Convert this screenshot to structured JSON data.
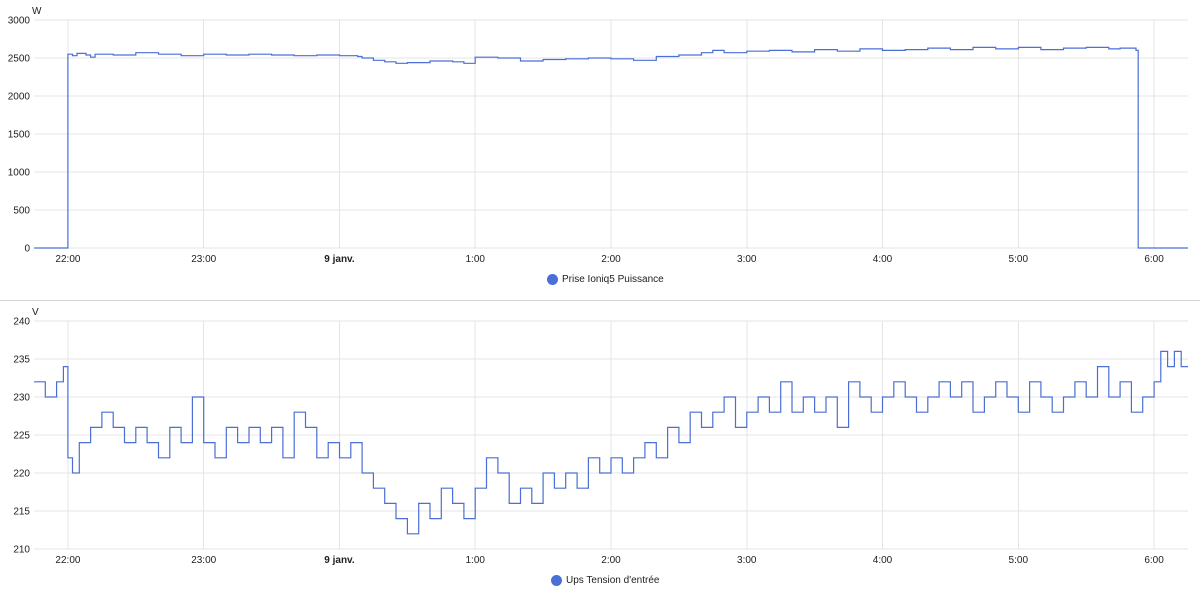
{
  "colors": {
    "series": "#4a6fd6",
    "grid": "#e4e4e4",
    "separator": "#d6d6d6"
  },
  "chart_data": [
    {
      "type": "line",
      "unit": "W",
      "ylim": [
        0,
        3000
      ],
      "yticks": [
        "3000",
        "2500",
        "2000",
        "1500",
        "1000",
        "500",
        "0"
      ],
      "xticks": [
        {
          "t": "22:00",
          "label": "22:00",
          "bold": false
        },
        {
          "t": "23:00",
          "label": "23:00",
          "bold": false
        },
        {
          "t": "00:00",
          "label": "9 janv.",
          "bold": true
        },
        {
          "t": "01:00",
          "label": "1:00",
          "bold": false
        },
        {
          "t": "02:00",
          "label": "2:00",
          "bold": false
        },
        {
          "t": "03:00",
          "label": "3:00",
          "bold": false
        },
        {
          "t": "04:00",
          "label": "4:00",
          "bold": false
        },
        {
          "t": "05:00",
          "label": "5:00",
          "bold": false
        },
        {
          "t": "06:00",
          "label": "6:00",
          "bold": false
        }
      ],
      "xlim": [
        "21:45",
        "06:15"
      ],
      "grid": true,
      "legend": "bottom-center",
      "series": [
        {
          "name": "Prise Ioniq5 Puissance",
          "points": [
            [
              "21:45",
              0
            ],
            [
              "21:59",
              0
            ],
            [
              "22:00",
              2550
            ],
            [
              "22:02",
              2530
            ],
            [
              "22:04",
              2560
            ],
            [
              "22:08",
              2540
            ],
            [
              "22:10",
              2510
            ],
            [
              "22:12",
              2550
            ],
            [
              "22:20",
              2540
            ],
            [
              "22:30",
              2570
            ],
            [
              "22:40",
              2550
            ],
            [
              "22:50",
              2530
            ],
            [
              "23:00",
              2550
            ],
            [
              "23:10",
              2540
            ],
            [
              "23:20",
              2550
            ],
            [
              "23:30",
              2540
            ],
            [
              "23:40",
              2530
            ],
            [
              "23:50",
              2540
            ],
            [
              "00:00",
              2530
            ],
            [
              "00:08",
              2520
            ],
            [
              "00:10",
              2500
            ],
            [
              "00:15",
              2470
            ],
            [
              "00:20",
              2450
            ],
            [
              "00:25",
              2430
            ],
            [
              "00:30",
              2440
            ],
            [
              "00:40",
              2460
            ],
            [
              "00:50",
              2450
            ],
            [
              "00:55",
              2430
            ],
            [
              "01:00",
              2510
            ],
            [
              "01:10",
              2500
            ],
            [
              "01:20",
              2460
            ],
            [
              "01:30",
              2480
            ],
            [
              "01:40",
              2490
            ],
            [
              "01:50",
              2500
            ],
            [
              "02:00",
              2490
            ],
            [
              "02:10",
              2470
            ],
            [
              "02:20",
              2520
            ],
            [
              "02:30",
              2540
            ],
            [
              "02:40",
              2570
            ],
            [
              "02:45",
              2600
            ],
            [
              "02:50",
              2570
            ],
            [
              "03:00",
              2590
            ],
            [
              "03:10",
              2600
            ],
            [
              "03:20",
              2580
            ],
            [
              "03:30",
              2610
            ],
            [
              "03:40",
              2590
            ],
            [
              "03:50",
              2620
            ],
            [
              "04:00",
              2600
            ],
            [
              "04:10",
              2610
            ],
            [
              "04:20",
              2630
            ],
            [
              "04:30",
              2610
            ],
            [
              "04:40",
              2640
            ],
            [
              "04:50",
              2620
            ],
            [
              "05:00",
              2640
            ],
            [
              "05:10",
              2610
            ],
            [
              "05:20",
              2630
            ],
            [
              "05:30",
              2640
            ],
            [
              "05:40",
              2620
            ],
            [
              "05:45",
              2630
            ],
            [
              "05:52",
              2600
            ],
            [
              "05:53",
              0
            ],
            [
              "06:15",
              0
            ]
          ]
        }
      ]
    },
    {
      "type": "line",
      "unit": "V",
      "ylim": [
        210,
        240
      ],
      "yticks": [
        "240",
        "235",
        "230",
        "225",
        "220",
        "215",
        "210"
      ],
      "xticks": [
        {
          "t": "22:00",
          "label": "22:00",
          "bold": false
        },
        {
          "t": "23:00",
          "label": "23:00",
          "bold": false
        },
        {
          "t": "00:00",
          "label": "9 janv.",
          "bold": true
        },
        {
          "t": "01:00",
          "label": "1:00",
          "bold": false
        },
        {
          "t": "02:00",
          "label": "2:00",
          "bold": false
        },
        {
          "t": "03:00",
          "label": "3:00",
          "bold": false
        },
        {
          "t": "04:00",
          "label": "4:00",
          "bold": false
        },
        {
          "t": "05:00",
          "label": "5:00",
          "bold": false
        },
        {
          "t": "06:00",
          "label": "6:00",
          "bold": false
        }
      ],
      "xlim": [
        "21:45",
        "06:15"
      ],
      "grid": true,
      "legend": "bottom-center",
      "series": [
        {
          "name": "Ups Tension d'entrée",
          "points": [
            [
              "21:45",
              232
            ],
            [
              "21:50",
              230
            ],
            [
              "21:55",
              232
            ],
            [
              "21:58",
              234
            ],
            [
              "22:00",
              222
            ],
            [
              "22:02",
              220
            ],
            [
              "22:05",
              224
            ],
            [
              "22:10",
              226
            ],
            [
              "22:15",
              228
            ],
            [
              "22:20",
              226
            ],
            [
              "22:25",
              224
            ],
            [
              "22:30",
              226
            ],
            [
              "22:35",
              224
            ],
            [
              "22:40",
              222
            ],
            [
              "22:45",
              226
            ],
            [
              "22:50",
              224
            ],
            [
              "22:55",
              230
            ],
            [
              "23:00",
              224
            ],
            [
              "23:05",
              222
            ],
            [
              "23:10",
              226
            ],
            [
              "23:15",
              224
            ],
            [
              "23:20",
              226
            ],
            [
              "23:25",
              224
            ],
            [
              "23:30",
              226
            ],
            [
              "23:35",
              222
            ],
            [
              "23:40",
              228
            ],
            [
              "23:45",
              226
            ],
            [
              "23:50",
              222
            ],
            [
              "23:55",
              224
            ],
            [
              "00:00",
              222
            ],
            [
              "00:05",
              224
            ],
            [
              "00:10",
              220
            ],
            [
              "00:15",
              218
            ],
            [
              "00:20",
              216
            ],
            [
              "00:25",
              214
            ],
            [
              "00:30",
              212
            ],
            [
              "00:35",
              216
            ],
            [
              "00:40",
              214
            ],
            [
              "00:45",
              218
            ],
            [
              "00:50",
              216
            ],
            [
              "00:55",
              214
            ],
            [
              "01:00",
              218
            ],
            [
              "01:05",
              222
            ],
            [
              "01:10",
              220
            ],
            [
              "01:15",
              216
            ],
            [
              "01:20",
              218
            ],
            [
              "01:25",
              216
            ],
            [
              "01:30",
              220
            ],
            [
              "01:35",
              218
            ],
            [
              "01:40",
              220
            ],
            [
              "01:45",
              218
            ],
            [
              "01:50",
              222
            ],
            [
              "01:55",
              220
            ],
            [
              "02:00",
              222
            ],
            [
              "02:05",
              220
            ],
            [
              "02:10",
              222
            ],
            [
              "02:15",
              224
            ],
            [
              "02:20",
              222
            ],
            [
              "02:25",
              226
            ],
            [
              "02:30",
              224
            ],
            [
              "02:35",
              228
            ],
            [
              "02:40",
              226
            ],
            [
              "02:45",
              228
            ],
            [
              "02:50",
              230
            ],
            [
              "02:55",
              226
            ],
            [
              "03:00",
              228
            ],
            [
              "03:05",
              230
            ],
            [
              "03:10",
              228
            ],
            [
              "03:15",
              232
            ],
            [
              "03:20",
              228
            ],
            [
              "03:25",
              230
            ],
            [
              "03:30",
              228
            ],
            [
              "03:35",
              230
            ],
            [
              "03:40",
              226
            ],
            [
              "03:45",
              232
            ],
            [
              "03:50",
              230
            ],
            [
              "03:55",
              228
            ],
            [
              "04:00",
              230
            ],
            [
              "04:05",
              232
            ],
            [
              "04:10",
              230
            ],
            [
              "04:15",
              228
            ],
            [
              "04:20",
              230
            ],
            [
              "04:25",
              232
            ],
            [
              "04:30",
              230
            ],
            [
              "04:35",
              232
            ],
            [
              "04:40",
              228
            ],
            [
              "04:45",
              230
            ],
            [
              "04:50",
              232
            ],
            [
              "04:55",
              230
            ],
            [
              "05:00",
              228
            ],
            [
              "05:05",
              232
            ],
            [
              "05:10",
              230
            ],
            [
              "05:15",
              228
            ],
            [
              "05:20",
              230
            ],
            [
              "05:25",
              232
            ],
            [
              "05:30",
              230
            ],
            [
              "05:35",
              234
            ],
            [
              "05:40",
              230
            ],
            [
              "05:45",
              232
            ],
            [
              "05:50",
              228
            ],
            [
              "05:55",
              230
            ],
            [
              "06:00",
              232
            ],
            [
              "06:03",
              236
            ],
            [
              "06:06",
              234
            ],
            [
              "06:09",
              236
            ],
            [
              "06:12",
              234
            ],
            [
              "06:15",
              234
            ]
          ]
        }
      ]
    }
  ]
}
